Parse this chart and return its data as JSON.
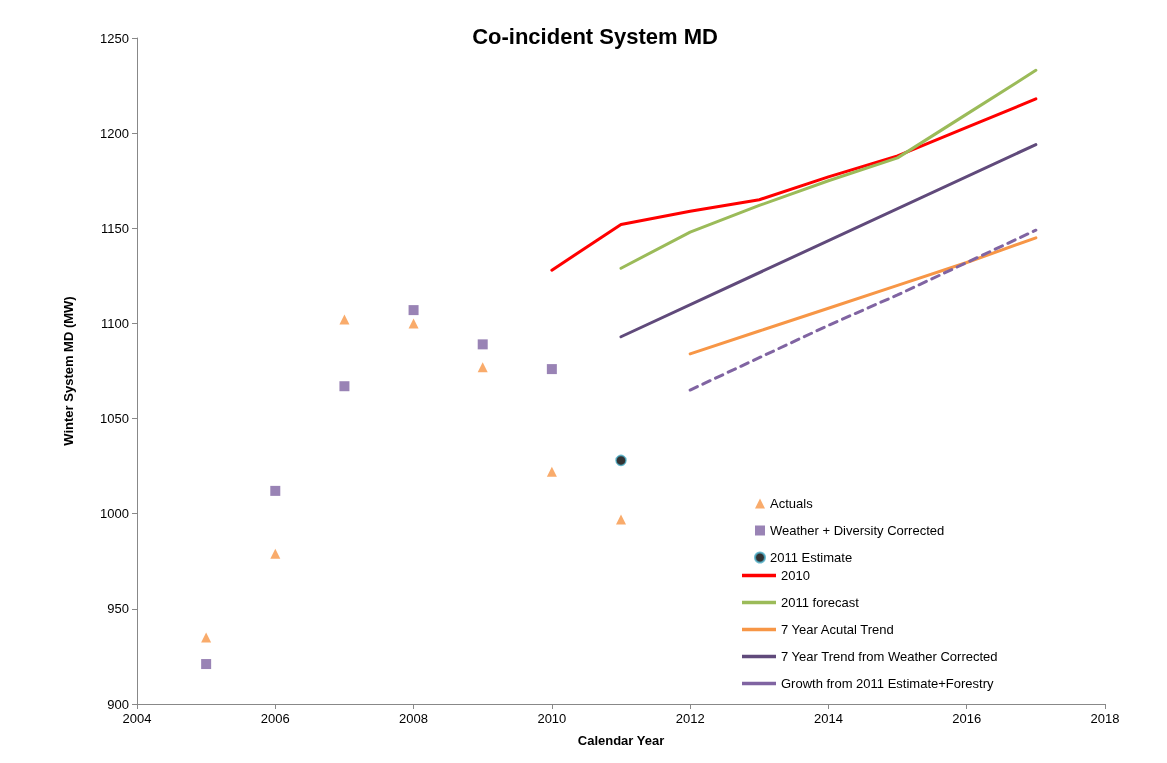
{
  "chart_data": {
    "type": "scatter",
    "title": "Co-incident System MD",
    "xlabel": "Calendar Year",
    "ylabel": "Winter System MD (MW)",
    "xlim": [
      2004,
      2018
    ],
    "xticks": [
      2004,
      2006,
      2008,
      2010,
      2012,
      2014,
      2016,
      2018
    ],
    "ylim": [
      900,
      1250
    ],
    "yticks": [
      900,
      950,
      1000,
      1050,
      1100,
      1150,
      1200,
      1250
    ],
    "grid": false,
    "legend": "bottom right",
    "series": [
      {
        "name": "Actuals",
        "marker": "triangle",
        "color": "#f79646",
        "x": [
          2005,
          2006,
          2007,
          2008,
          2009,
          2010
        ],
        "values": [
          935,
          979,
          1102,
          1100,
          1077,
          1022
        ]
      },
      {
        "name": "Weather + Diversity Corrected",
        "marker": "square",
        "color": "#8064a2",
        "x": [
          2005,
          2006,
          2007,
          2008,
          2009,
          2010
        ],
        "values": [
          921,
          1012,
          1067,
          1107,
          1089,
          1076
        ]
      },
      {
        "name": "2011 Estimate",
        "marker": "circle",
        "color": "#000000",
        "x": [
          2011
        ],
        "values": [
          1028
        ]
      },
      {
        "name": "2010",
        "type": "line",
        "marker": "none",
        "line_style": "solid",
        "color": "#ff0000",
        "x": [
          2010,
          2011,
          2012,
          2013,
          2014,
          2015,
          2016,
          2017
        ],
        "values": [
          1128,
          1152,
          1159,
          1165,
          1177,
          1188,
          1203,
          1218
        ]
      },
      {
        "name": "2011 forecast",
        "type": "line",
        "marker": "none",
        "line_style": "solid",
        "color": "#9bbb59",
        "x": [
          2011,
          2012,
          2013,
          2014,
          2015,
          2016,
          2017
        ],
        "values": [
          1129,
          1148,
          1162,
          1175,
          1187,
          1210,
          1233
        ]
      },
      {
        "name": "7 Year Acutal Trend",
        "type": "line",
        "marker": "none",
        "line_style": "solid",
        "color": "#f79646",
        "x": [
          2012,
          2013,
          2014,
          2015,
          2016,
          2017
        ],
        "values": [
          1084,
          1096,
          1108,
          1120,
          1132,
          1145
        ]
      },
      {
        "name": "7 Year Trend from Weather Corrected",
        "type": "line",
        "marker": "none",
        "line_style": "solid",
        "color": "#604a7b",
        "x": [
          2011,
          2017
        ],
        "values": [
          1093,
          1194
        ]
      },
      {
        "name": "Growth from 2011 Estimate+Forestry",
        "type": "line",
        "marker": "none",
        "line_style": "dashed",
        "color": "#8064a2",
        "x": [
          2012,
          2013,
          2014,
          2015,
          2016,
          2017
        ],
        "values": [
          1065,
          1082,
          1099,
          1115,
          1132,
          1149
        ]
      },
      {
        "marker": "triangle",
        "color": "#f79646",
        "x": [
          2011
        ],
        "values": [
          997
        ]
      }
    ]
  }
}
